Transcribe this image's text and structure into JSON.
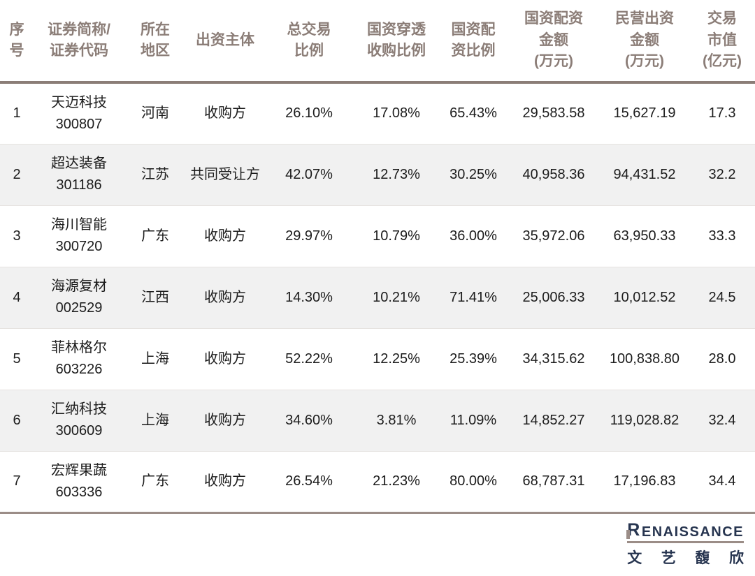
{
  "chart_data": {
    "type": "table",
    "columns": [
      {
        "key": "no",
        "label": "序\n号"
      },
      {
        "key": "name_code",
        "label": "证券简称/\n证券代码"
      },
      {
        "key": "region",
        "label": "所在\n地区"
      },
      {
        "key": "entity",
        "label": "出资主体"
      },
      {
        "key": "total_ratio",
        "label": "总交易\n比例"
      },
      {
        "key": "penetration_ratio",
        "label": "国资穿透\n收购比例"
      },
      {
        "key": "allocation_ratio",
        "label": "国资配\n资比例"
      },
      {
        "key": "allocation_amount",
        "label": "国资配资\n金额\n(万元)"
      },
      {
        "key": "private_amount",
        "label": "民营出资\n金额\n(万元)"
      },
      {
        "key": "market_value",
        "label": "交易\n市值\n(亿元)"
      }
    ],
    "rows": [
      {
        "no": "1",
        "name": "天迈科技",
        "code": "300807",
        "region": "河南",
        "entity": "收购方",
        "total_ratio": "26.10%",
        "penetration_ratio": "17.08%",
        "allocation_ratio": "65.43%",
        "allocation_amount": "29,583.58",
        "private_amount": "15,627.19",
        "market_value": "17.3"
      },
      {
        "no": "2",
        "name": "超达装备",
        "code": "301186",
        "region": "江苏",
        "entity": "共同受让方",
        "total_ratio": "42.07%",
        "penetration_ratio": "12.73%",
        "allocation_ratio": "30.25%",
        "allocation_amount": "40,958.36",
        "private_amount": "94,431.52",
        "market_value": "32.2"
      },
      {
        "no": "3",
        "name": "海川智能",
        "code": "300720",
        "region": "广东",
        "entity": "收购方",
        "total_ratio": "29.97%",
        "penetration_ratio": "10.79%",
        "allocation_ratio": "36.00%",
        "allocation_amount": "35,972.06",
        "private_amount": "63,950.33",
        "market_value": "33.3"
      },
      {
        "no": "4",
        "name": "海源复材",
        "code": "002529",
        "region": "江西",
        "entity": "收购方",
        "total_ratio": "14.30%",
        "penetration_ratio": "10.21%",
        "allocation_ratio": "71.41%",
        "allocation_amount": "25,006.33",
        "private_amount": "10,012.52",
        "market_value": "24.5"
      },
      {
        "no": "5",
        "name": "菲林格尔",
        "code": "603226",
        "region": "上海",
        "entity": "收购方",
        "total_ratio": "52.22%",
        "penetration_ratio": "12.25%",
        "allocation_ratio": "25.39%",
        "allocation_amount": "34,315.62",
        "private_amount": "100,838.80",
        "market_value": "28.0"
      },
      {
        "no": "6",
        "name": "汇纳科技",
        "code": "300609",
        "region": "上海",
        "entity": "收购方",
        "total_ratio": "34.60%",
        "penetration_ratio": "3.81%",
        "allocation_ratio": "11.09%",
        "allocation_amount": "14,852.27",
        "private_amount": "119,028.82",
        "market_value": "32.4"
      },
      {
        "no": "7",
        "name": "宏辉果蔬",
        "code": "603336",
        "region": "广东",
        "entity": "收购方",
        "total_ratio": "26.54%",
        "penetration_ratio": "21.23%",
        "allocation_ratio": "80.00%",
        "allocation_amount": "68,787.31",
        "private_amount": "17,196.83",
        "market_value": "34.4"
      }
    ]
  },
  "logo": {
    "brand_initial": "R",
    "brand_rest": "ENAISSANCE",
    "chinese": "文艺馥欣"
  },
  "colors": {
    "header_text": "#8b7d77",
    "header_rule": "#8b7d77",
    "bottom_rule": "#9b8d87",
    "alt_row_bg": "#f1f1f1",
    "body_text": "#1c1c1c",
    "logo_navy": "#273550",
    "logo_taupe": "#9b8d87"
  }
}
